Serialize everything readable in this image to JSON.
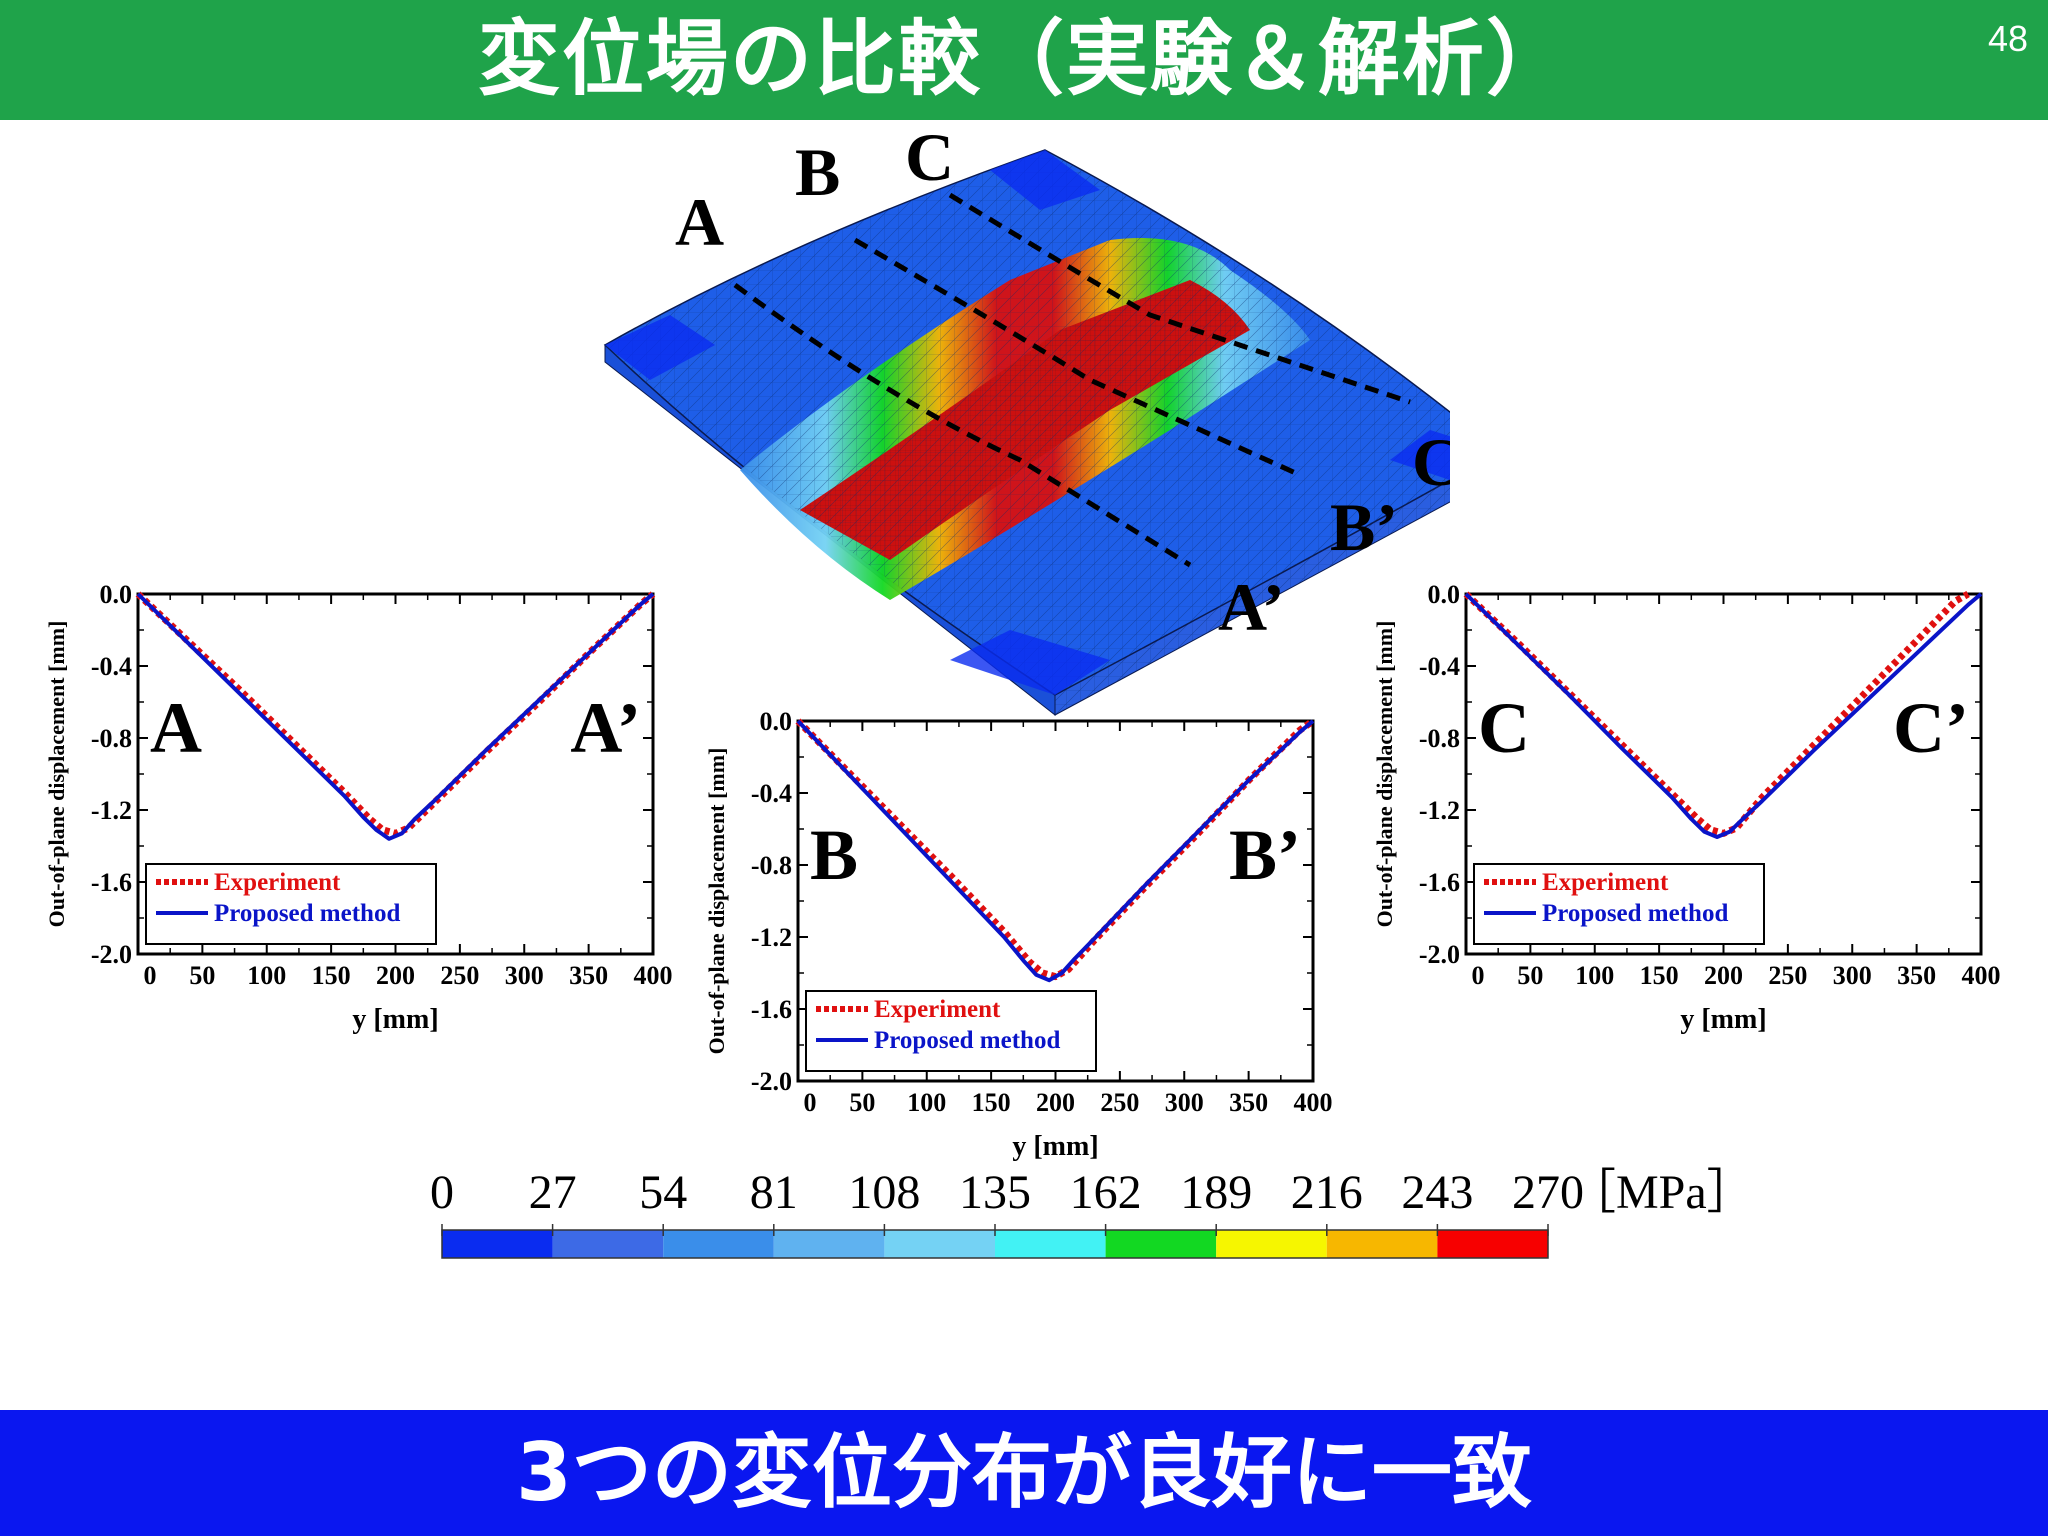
{
  "header": {
    "title": "変位場の比較（実験＆解析）",
    "page_number": "48",
    "bg_color": "#1fa34a"
  },
  "footer": {
    "conclusion": "3つの変位分布が良好に一致",
    "bg_color": "#0a17f0"
  },
  "fem_model": {
    "section_labels": [
      "A",
      "B",
      "C",
      "A’",
      "B’",
      "C’"
    ]
  },
  "colorbar": {
    "ticks": [
      "0",
      "27",
      "54",
      "81",
      "108",
      "135",
      "162",
      "189",
      "216",
      "243",
      "270"
    ],
    "unit": "［MPa］",
    "colors": [
      "#0a2cf0",
      "#3d6ae6",
      "#3a8eea",
      "#5fb2f0",
      "#74d2f4",
      "#42f2f4",
      "#12d822",
      "#f6f600",
      "#f7b700",
      "#f78a00",
      "#f70000"
    ]
  },
  "chart_data": [
    {
      "type": "line",
      "section_left": "A",
      "section_right": "A’",
      "xlabel": "y [mm]",
      "ylabel": "Out-of-plane displacement [mm]",
      "xlim": [
        0,
        400
      ],
      "ylim": [
        -2.0,
        0.0
      ],
      "xticks": [
        "0",
        "50",
        "100",
        "150",
        "200",
        "250",
        "300",
        "350",
        "400"
      ],
      "yticks": [
        "0.0",
        "-0.4",
        "-0.8",
        "-1.2",
        "-1.6",
        "-2.0"
      ],
      "series": [
        {
          "name": "Experiment",
          "color": "#e01010",
          "style": "dashed",
          "x": [
            0,
            40,
            80,
            120,
            160,
            180,
            190,
            200,
            210,
            230,
            270,
            310,
            350,
            390,
            400
          ],
          "y": [
            0.0,
            -0.27,
            -0.54,
            -0.82,
            -1.1,
            -1.25,
            -1.31,
            -1.33,
            -1.3,
            -1.16,
            -0.88,
            -0.61,
            -0.33,
            -0.06,
            0.0
          ]
        },
        {
          "name": "Proposed method",
          "color": "#0a14c8",
          "style": "solid",
          "x": [
            0,
            40,
            80,
            120,
            160,
            175,
            185,
            195,
            205,
            215,
            230,
            270,
            310,
            350,
            390,
            400
          ],
          "y": [
            0.0,
            -0.28,
            -0.56,
            -0.84,
            -1.12,
            -1.24,
            -1.31,
            -1.36,
            -1.33,
            -1.25,
            -1.15,
            -0.87,
            -0.6,
            -0.33,
            -0.06,
            0.0
          ]
        }
      ]
    },
    {
      "type": "line",
      "section_left": "B",
      "section_right": "B’",
      "xlabel": "y [mm]",
      "ylabel": "Out-of-plane displacement [mm]",
      "xlim": [
        0,
        400
      ],
      "ylim": [
        -2.0,
        0.0
      ],
      "xticks": [
        "0",
        "50",
        "100",
        "150",
        "200",
        "250",
        "300",
        "350",
        "400"
      ],
      "yticks": [
        "0.0",
        "-0.4",
        "-0.8",
        "-1.2",
        "-1.6",
        "-2.0"
      ],
      "series": [
        {
          "name": "Experiment",
          "color": "#e01010",
          "style": "dashed",
          "x": [
            0,
            40,
            80,
            120,
            160,
            180,
            190,
            200,
            210,
            230,
            270,
            310,
            350,
            390,
            400
          ],
          "y": [
            0.0,
            -0.29,
            -0.58,
            -0.87,
            -1.17,
            -1.34,
            -1.4,
            -1.42,
            -1.38,
            -1.22,
            -0.92,
            -0.63,
            -0.33,
            -0.05,
            0.0
          ]
        },
        {
          "name": "Proposed method",
          "color": "#0a14c8",
          "style": "solid",
          "x": [
            0,
            40,
            80,
            120,
            160,
            175,
            185,
            195,
            205,
            215,
            230,
            270,
            310,
            350,
            390,
            400
          ],
          "y": [
            0.0,
            -0.3,
            -0.6,
            -0.9,
            -1.2,
            -1.33,
            -1.41,
            -1.44,
            -1.4,
            -1.32,
            -1.21,
            -0.91,
            -0.62,
            -0.33,
            -0.06,
            0.0
          ]
        }
      ]
    },
    {
      "type": "line",
      "section_left": "C",
      "section_right": "C’",
      "xlabel": "y [mm]",
      "ylabel": "Out-of-plane displacement [mm]",
      "xlim": [
        0,
        400
      ],
      "ylim": [
        -2.0,
        0.0
      ],
      "xticks": [
        "0",
        "50",
        "100",
        "150",
        "200",
        "250",
        "300",
        "350",
        "400"
      ],
      "yticks": [
        "0.0",
        "-0.4",
        "-0.8",
        "-1.2",
        "-1.6",
        "-2.0"
      ],
      "series": [
        {
          "name": "Experiment",
          "color": "#e01010",
          "style": "dashed",
          "x": [
            0,
            40,
            80,
            120,
            160,
            180,
            190,
            200,
            210,
            230,
            270,
            310,
            350,
            380,
            390
          ],
          "y": [
            0.0,
            -0.27,
            -0.55,
            -0.83,
            -1.11,
            -1.25,
            -1.31,
            -1.33,
            -1.3,
            -1.13,
            -0.84,
            -0.55,
            -0.26,
            -0.04,
            0.0
          ]
        },
        {
          "name": "Proposed method",
          "color": "#0a14c8",
          "style": "solid",
          "x": [
            0,
            40,
            80,
            120,
            160,
            175,
            185,
            195,
            205,
            215,
            230,
            270,
            310,
            350,
            390,
            400
          ],
          "y": [
            0.0,
            -0.28,
            -0.56,
            -0.85,
            -1.13,
            -1.25,
            -1.32,
            -1.35,
            -1.32,
            -1.25,
            -1.15,
            -0.87,
            -0.6,
            -0.33,
            -0.06,
            0.0
          ]
        }
      ]
    }
  ]
}
